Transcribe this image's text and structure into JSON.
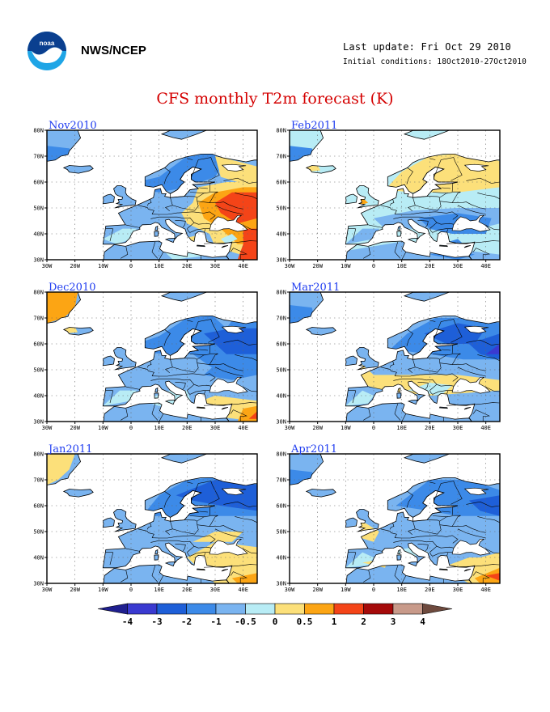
{
  "header": {
    "org": "NWS/NCEP",
    "last_update": "Last update: Fri Oct 29 2010",
    "initial_conditions": "Initial conditions: 18Oct2010-27Oct2010",
    "title": "CFS monthly T2m forecast (K)",
    "logo_icon": "noaa-logo-icon"
  },
  "axes": {
    "lon_labels": [
      "30W",
      "20W",
      "10W",
      "0",
      "10E",
      "20E",
      "30E",
      "40E"
    ],
    "lat_labels": [
      "30N",
      "40N",
      "50N",
      "60N",
      "70N",
      "80N"
    ]
  },
  "panels": [
    {
      "label": "Nov2010",
      "pattern": "nov"
    },
    {
      "label": "Feb2011",
      "pattern": "feb"
    },
    {
      "label": "Dec2010",
      "pattern": "dec"
    },
    {
      "label": "Mar2011",
      "pattern": "mar"
    },
    {
      "label": "Jan2011",
      "pattern": "jan"
    },
    {
      "label": "Apr2011",
      "pattern": "apr"
    }
  ],
  "colorbar": {
    "labels": [
      "-4",
      "-3",
      "-2",
      "-1",
      "-0.5",
      "0",
      "0.5",
      "1",
      "2",
      "3",
      "4"
    ],
    "colors": [
      "#1f1f8f",
      "#3a3ad0",
      "#1e5fd8",
      "#3c8ae8",
      "#7ab4f0",
      "#b8ecf5",
      "#fce07a",
      "#fca514",
      "#f44418",
      "#a50a0a",
      "#c89a8a",
      "#6e4a3e"
    ]
  }
}
